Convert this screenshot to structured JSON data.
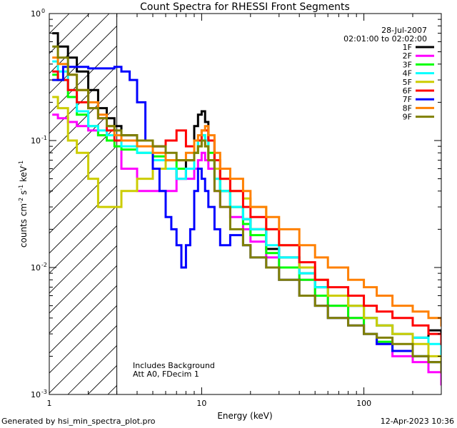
{
  "chart_data": {
    "type": "line",
    "title": "Count Spectra for RHESSI Front Segments",
    "xlabel": "Energy (keV)",
    "ylabel": "counts cm-2 s-1 keV-1",
    "xscale": "log",
    "yscale": "log",
    "xlim": [
      1.15,
      300
    ],
    "ylim": [
      0.001,
      1.0
    ],
    "x_ticks": [
      {
        "value": 1,
        "label": "1"
      },
      {
        "value": 10,
        "label": "10"
      },
      {
        "value": 100,
        "label": "100"
      }
    ],
    "y_ticks": [
      {
        "value": 1.0,
        "label": "10",
        "exp": "0"
      },
      {
        "value": 0.1,
        "label": "10",
        "exp": "-1"
      },
      {
        "value": 0.01,
        "label": "10",
        "exp": "-2"
      },
      {
        "value": 0.001,
        "label": "10",
        "exp": "-3"
      }
    ],
    "legend_position": "top-right",
    "date": "28-Jul-2007",
    "time_range": "02:01:00 to 02:02:00",
    "annotations": [
      "Includes Background",
      "Att A0, FDecim 1"
    ],
    "hatched_region_xmax": 3.0,
    "series": [
      {
        "name": "1F",
        "color": "#000000",
        "e": [
          1.2,
          1.3,
          1.5,
          1.7,
          2.0,
          2.3,
          2.6,
          2.9,
          3.2,
          4,
          5,
          6,
          7,
          8,
          9,
          9.5,
          10,
          10.5,
          11,
          12,
          13,
          15,
          18,
          20,
          25,
          30,
          40,
          50,
          60,
          80,
          100,
          120,
          150,
          200,
          250,
          300
        ],
        "v": [
          0.7,
          0.55,
          0.45,
          0.35,
          0.25,
          0.18,
          0.15,
          0.13,
          0.11,
          0.1,
          0.09,
          0.06,
          0.05,
          0.07,
          0.13,
          0.16,
          0.17,
          0.14,
          0.1,
          0.06,
          0.04,
          0.03,
          0.024,
          0.02,
          0.014,
          0.012,
          0.009,
          0.007,
          0.006,
          0.005,
          0.004,
          0.0035,
          0.003,
          0.0028,
          0.0032,
          0.0025
        ]
      },
      {
        "name": "2F",
        "color": "#ff00ff",
        "e": [
          1.2,
          1.3,
          1.5,
          1.7,
          2.0,
          2.3,
          2.6,
          2.9,
          3.2,
          4,
          5,
          6,
          7,
          8,
          9,
          9.5,
          10,
          10.5,
          11,
          12,
          13,
          15,
          18,
          20,
          25,
          30,
          40,
          50,
          60,
          80,
          100,
          120,
          150,
          200,
          250,
          300
        ],
        "v": [
          0.16,
          0.15,
          0.14,
          0.13,
          0.12,
          0.11,
          0.1,
          0.1,
          0.06,
          0.04,
          0.04,
          0.04,
          0.05,
          0.05,
          0.06,
          0.07,
          0.08,
          0.07,
          0.06,
          0.04,
          0.03,
          0.025,
          0.02,
          0.016,
          0.012,
          0.01,
          0.008,
          0.006,
          0.005,
          0.004,
          0.003,
          0.0025,
          0.002,
          0.0018,
          0.0015,
          0.0012
        ]
      },
      {
        "name": "3F",
        "color": "#00ff00",
        "e": [
          1.2,
          1.3,
          1.5,
          1.7,
          2.0,
          2.3,
          2.6,
          2.9,
          3.2,
          4,
          5,
          6,
          7,
          8,
          9,
          9.5,
          10,
          10.5,
          11,
          12,
          13,
          15,
          18,
          20,
          25,
          30,
          40,
          50,
          60,
          80,
          100,
          120,
          150,
          200,
          250,
          300
        ],
        "v": [
          0.33,
          0.3,
          0.22,
          0.16,
          0.13,
          0.11,
          0.1,
          0.09,
          0.085,
          0.08,
          0.075,
          0.07,
          0.06,
          0.06,
          0.08,
          0.1,
          0.11,
          0.1,
          0.08,
          0.05,
          0.04,
          0.03,
          0.022,
          0.018,
          0.013,
          0.01,
          0.008,
          0.006,
          0.005,
          0.004,
          0.003,
          0.0026,
          0.0022,
          0.002,
          0.0018,
          0.0015
        ]
      },
      {
        "name": "4F",
        "color": "#00ffff",
        "e": [
          1.2,
          1.3,
          1.5,
          1.7,
          2.0,
          2.3,
          2.6,
          2.9,
          3.2,
          4,
          5,
          6,
          7,
          8,
          9,
          9.5,
          10,
          10.5,
          11,
          12,
          13,
          15,
          18,
          20,
          25,
          30,
          40,
          50,
          60,
          80,
          100,
          120,
          150,
          200,
          250,
          300
        ],
        "v": [
          0.42,
          0.35,
          0.25,
          0.17,
          0.13,
          0.12,
          0.11,
          0.1,
          0.09,
          0.08,
          0.07,
          0.06,
          0.05,
          0.06,
          0.08,
          0.1,
          0.11,
          0.1,
          0.07,
          0.05,
          0.04,
          0.03,
          0.024,
          0.02,
          0.015,
          0.012,
          0.009,
          0.007,
          0.006,
          0.005,
          0.004,
          0.0035,
          0.003,
          0.0028,
          0.0025,
          0.002
        ]
      },
      {
        "name": "5F",
        "color": "#cccc00",
        "e": [
          1.2,
          1.3,
          1.5,
          1.7,
          2.0,
          2.3,
          2.6,
          2.9,
          3.2,
          4,
          5,
          6,
          7,
          8,
          9,
          9.5,
          10,
          10.5,
          11,
          12,
          13,
          15,
          18,
          20,
          25,
          30,
          40,
          50,
          60,
          80,
          100,
          120,
          150,
          200,
          250,
          300
        ],
        "v": [
          0.22,
          0.18,
          0.1,
          0.08,
          0.05,
          0.03,
          0.03,
          0.03,
          0.04,
          0.05,
          0.06,
          0.07,
          0.07,
          0.07,
          0.08,
          0.09,
          0.1,
          0.09,
          0.07,
          0.06,
          0.05,
          0.04,
          0.035,
          0.03,
          0.02,
          0.015,
          0.01,
          0.008,
          0.006,
          0.005,
          0.004,
          0.0035,
          0.003,
          0.0025,
          0.002,
          0.0015
        ]
      },
      {
        "name": "6F",
        "color": "#ff0000",
        "e": [
          1.2,
          1.3,
          1.5,
          1.7,
          2.0,
          2.3,
          2.6,
          2.9,
          3.2,
          4,
          5,
          6,
          7,
          8,
          9,
          9.5,
          10,
          10.5,
          11,
          12,
          13,
          15,
          18,
          20,
          25,
          30,
          40,
          50,
          60,
          80,
          100,
          120,
          150,
          200,
          250,
          300
        ],
        "v": [
          0.35,
          0.3,
          0.25,
          0.2,
          0.18,
          0.15,
          0.12,
          0.1,
          0.1,
          0.1,
          0.09,
          0.1,
          0.12,
          0.09,
          0.1,
          0.1,
          0.12,
          0.12,
          0.1,
          0.07,
          0.05,
          0.04,
          0.03,
          0.025,
          0.02,
          0.015,
          0.011,
          0.008,
          0.007,
          0.006,
          0.005,
          0.0045,
          0.004,
          0.0035,
          0.003,
          0.0025
        ]
      },
      {
        "name": "7F",
        "color": "#0000ff",
        "e": [
          1.2,
          1.4,
          1.6,
          1.8,
          2.0,
          2.3,
          2.6,
          2.9,
          3.2,
          3.6,
          4,
          4.5,
          5,
          5.5,
          6,
          6.5,
          7,
          7.5,
          8,
          8.5,
          9,
          9.5,
          10,
          10.5,
          11,
          12,
          13,
          15,
          18,
          20,
          25,
          30,
          40,
          50,
          60,
          80,
          100,
          120,
          150,
          200,
          250,
          300
        ],
        "v": [
          0.3,
          0.38,
          0.38,
          0.38,
          0.37,
          0.37,
          0.37,
          0.38,
          0.35,
          0.3,
          0.2,
          0.1,
          0.06,
          0.04,
          0.025,
          0.02,
          0.015,
          0.01,
          0.015,
          0.02,
          0.04,
          0.06,
          0.05,
          0.04,
          0.03,
          0.02,
          0.015,
          0.018,
          0.015,
          0.012,
          0.01,
          0.008,
          0.006,
          0.005,
          0.004,
          0.0035,
          0.003,
          0.0025,
          0.0022,
          0.002,
          0.0018,
          0.0015
        ]
      },
      {
        "name": "8F",
        "color": "#ff8000",
        "e": [
          1.2,
          1.3,
          1.5,
          1.7,
          2.0,
          2.3,
          2.6,
          2.9,
          3.2,
          4,
          5,
          6,
          7,
          8,
          9,
          9.5,
          10,
          10.5,
          11,
          12,
          13,
          15,
          18,
          20,
          25,
          30,
          40,
          50,
          60,
          80,
          100,
          120,
          150,
          200,
          250,
          300
        ],
        "v": [
          0.45,
          0.4,
          0.33,
          0.25,
          0.2,
          0.16,
          0.13,
          0.11,
          0.1,
          0.09,
          0.08,
          0.07,
          0.07,
          0.08,
          0.1,
          0.11,
          0.12,
          0.13,
          0.11,
          0.08,
          0.06,
          0.05,
          0.04,
          0.03,
          0.025,
          0.02,
          0.015,
          0.012,
          0.01,
          0.008,
          0.007,
          0.006,
          0.005,
          0.0045,
          0.004,
          0.0035
        ]
      },
      {
        "name": "9F",
        "color": "#808000",
        "e": [
          1.2,
          1.3,
          1.5,
          1.7,
          2.0,
          2.3,
          2.6,
          2.9,
          3.2,
          4,
          5,
          6,
          7,
          8,
          9,
          9.5,
          10,
          10.5,
          11,
          12,
          13,
          15,
          18,
          20,
          25,
          30,
          40,
          50,
          60,
          80,
          100,
          120,
          150,
          200,
          250,
          300
        ],
        "v": [
          0.55,
          0.45,
          0.33,
          0.25,
          0.18,
          0.15,
          0.13,
          0.12,
          0.11,
          0.1,
          0.09,
          0.08,
          0.07,
          0.07,
          0.08,
          0.09,
          0.1,
          0.09,
          0.07,
          0.04,
          0.03,
          0.02,
          0.015,
          0.012,
          0.01,
          0.008,
          0.006,
          0.005,
          0.004,
          0.0035,
          0.003,
          0.0028,
          0.0025,
          0.002,
          0.0018,
          0.0015
        ]
      }
    ]
  },
  "footer": {
    "generated_by": "Generated by hsi_min_spectra_plot.pro",
    "timestamp": "12-Apr-2023 10:36"
  }
}
